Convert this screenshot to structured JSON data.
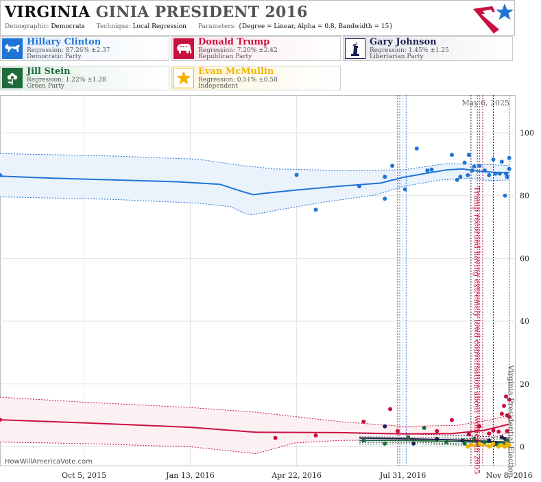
{
  "header": {
    "title_state": "VIRGINIA",
    "title_rest": "GINIA PRESIDENT 2016",
    "params": [
      {
        "label": "Demographic:",
        "value": "Democrats"
      },
      {
        "label": "Technique:",
        "value": "Local Regression"
      },
      {
        "label": "Parameters:",
        "value": "{Degree = Linear, Alpha = 0.8, Bandwidth = 15}"
      }
    ]
  },
  "candidates": [
    {
      "name": "Hillary Clinton",
      "regression": "Regression: 87.26% ±2.37",
      "party": "Democratic Party",
      "color": "#1f74d6",
      "icon": "donkey-icon"
    },
    {
      "name": "Donald Trump",
      "regression": "Regression: 7.20% ±2.42",
      "party": "Republican Party",
      "color": "#c8103e",
      "icon": "elephant-icon"
    },
    {
      "name": "Gary Johnson",
      "regression": "Regression: 1.45% ±1.25",
      "party": "Libertarian Party",
      "color": "#1c1f4f",
      "icon": "statue-of-liberty-icon"
    },
    {
      "name": "Jill Stein",
      "regression": "Regression: 1.22% ±1.28",
      "party": "Green Party",
      "color": "#1e6b3a",
      "icon": "flower-icon"
    },
    {
      "name": "Evan McMullin",
      "regression": "Regression: 0.51% ±0.58",
      "party": "Independent",
      "color": "#f0b400",
      "icon": "star-icon"
    }
  ],
  "chart_data": {
    "type": "scatter",
    "date_stamp": "May 6, 2025",
    "credit": "HowWillAmericaVote.com",
    "x_domain": [
      "2015-07-18",
      "2016-11-14"
    ],
    "ylim": [
      -6,
      112
    ],
    "y_ticks": [
      0,
      20,
      40,
      60,
      80,
      100
    ],
    "x_ticks": [
      {
        "date": "2015-10-05",
        "label": "Oct 5, 2015"
      },
      {
        "date": "2016-01-13",
        "label": "Jan 13, 2016"
      },
      {
        "date": "2016-04-22",
        "label": "Apr 22, 2016"
      },
      {
        "date": "2016-07-31",
        "label": "Jul 31, 2016"
      },
      {
        "date": "2016-11-08",
        "label": "Nov 8, 2016"
      }
    ],
    "event_lines": [
      {
        "date": "2016-07-26",
        "color": "#c8103e"
      },
      {
        "date": "2016-07-28",
        "color": "#1f74d6"
      },
      {
        "date": "2016-08-03",
        "color": "#1f74d6"
      },
      {
        "date": "2016-10-03",
        "color": "#1c1f4f"
      },
      {
        "date": "2016-10-09",
        "color": "#c8103e"
      },
      {
        "date": "2016-10-11",
        "color": "#c8103e"
      },
      {
        "date": "2016-10-14",
        "color": "#c8103e"
      },
      {
        "date": "2016-10-24",
        "color": "#1c1f4f"
      },
      {
        "date": "2016-11-08",
        "color": "#666666"
      }
    ],
    "annotations": [
      {
        "text": "Trump recorded having extremely lewd conversation about women in 2005",
        "date": "2016-10-07",
        "y": 83,
        "color": "#c8103e"
      },
      {
        "text": "Virginia Presidential Election",
        "date": "2016-11-08",
        "y": 26,
        "color": "#555555"
      }
    ],
    "series": [
      {
        "name": "Hillary Clinton",
        "color": "#1f74d6",
        "band_fill": "#eaf2fb",
        "trend": [
          [
            "2015-07-18",
            86.2
          ],
          [
            "2015-09-01",
            85.6
          ],
          [
            "2015-11-01",
            85.0
          ],
          [
            "2016-01-01",
            84.4
          ],
          [
            "2016-02-10",
            83.6
          ],
          [
            "2016-03-01",
            81.4
          ],
          [
            "2016-03-12",
            80.3
          ],
          [
            "2016-03-25",
            80.8
          ],
          [
            "2016-04-22",
            81.8
          ],
          [
            "2016-06-01",
            83.0
          ],
          [
            "2016-07-10",
            84.0
          ],
          [
            "2016-07-31",
            85.8
          ],
          [
            "2016-08-20",
            87.0
          ],
          [
            "2016-09-10",
            88.2
          ],
          [
            "2016-09-25",
            88.5
          ],
          [
            "2016-10-10",
            87.8
          ],
          [
            "2016-10-25",
            87.4
          ],
          [
            "2016-11-08",
            87.3
          ]
        ],
        "upper": [
          [
            "2015-07-18",
            93.4
          ],
          [
            "2015-11-01",
            92.6
          ],
          [
            "2016-01-20",
            91.6
          ],
          [
            "2016-03-01",
            89.6
          ],
          [
            "2016-04-01",
            88.5
          ],
          [
            "2016-06-01",
            88.0
          ],
          [
            "2016-07-31",
            88.2
          ],
          [
            "2016-09-10",
            90.2
          ],
          [
            "2016-10-10",
            90.0
          ],
          [
            "2016-11-08",
            89.6
          ]
        ],
        "lower": [
          [
            "2015-07-18",
            79.6
          ],
          [
            "2015-11-01",
            78.8
          ],
          [
            "2016-01-20",
            77.6
          ],
          [
            "2016-02-20",
            76.5
          ],
          [
            "2016-03-05",
            74.2
          ],
          [
            "2016-03-12",
            73.9
          ],
          [
            "2016-04-01",
            75.2
          ],
          [
            "2016-05-15",
            77.8
          ],
          [
            "2016-07-05",
            80.2
          ],
          [
            "2016-08-01",
            83.0
          ],
          [
            "2016-09-05",
            85.0
          ],
          [
            "2016-10-01",
            85.5
          ],
          [
            "2016-10-20",
            84.8
          ],
          [
            "2016-11-08",
            85.0
          ]
        ],
        "points": [
          [
            "2015-07-18",
            86.5
          ],
          [
            "2016-04-22",
            86.6
          ],
          [
            "2016-05-10",
            75.5
          ],
          [
            "2016-06-20",
            83.0
          ],
          [
            "2016-07-14",
            86.0
          ],
          [
            "2016-07-14",
            79.0
          ],
          [
            "2016-07-21",
            89.5
          ],
          [
            "2016-08-02",
            82.0
          ],
          [
            "2016-08-13",
            95.0
          ],
          [
            "2016-08-23",
            88.0
          ],
          [
            "2016-08-27",
            88.3
          ],
          [
            "2016-09-15",
            93.0
          ],
          [
            "2016-09-20",
            85.0
          ],
          [
            "2016-09-23",
            86.0
          ],
          [
            "2016-09-27",
            90.5
          ],
          [
            "2016-09-30",
            86.5
          ],
          [
            "2016-10-01",
            93.0
          ],
          [
            "2016-10-04",
            88.0
          ],
          [
            "2016-10-06",
            89.3
          ],
          [
            "2016-10-11",
            89.5
          ],
          [
            "2016-10-16",
            88.0
          ],
          [
            "2016-10-20",
            86.5
          ],
          [
            "2016-10-24",
            91.5
          ],
          [
            "2016-10-26",
            87.0
          ],
          [
            "2016-10-30",
            87.0
          ],
          [
            "2016-11-01",
            90.8
          ],
          [
            "2016-11-04",
            80.0
          ],
          [
            "2016-11-05",
            87.0
          ],
          [
            "2016-11-06",
            86.0
          ],
          [
            "2016-11-08",
            92.0
          ],
          [
            "2016-11-08",
            88.5
          ]
        ]
      },
      {
        "name": "Donald Trump",
        "color": "#c8103e",
        "band_fill": "#fdf0f3",
        "trend": [
          [
            "2015-07-18",
            8.6
          ],
          [
            "2015-10-05",
            7.6
          ],
          [
            "2016-01-13",
            6.2
          ],
          [
            "2016-03-15",
            4.6
          ],
          [
            "2016-06-01",
            4.5
          ],
          [
            "2016-07-31",
            4.1
          ],
          [
            "2016-09-15",
            4.2
          ],
          [
            "2016-10-15",
            5.2
          ],
          [
            "2016-11-08",
            7.2
          ]
        ],
        "upper": [
          [
            "2015-07-18",
            15.8
          ],
          [
            "2015-10-05",
            14.2
          ],
          [
            "2016-01-13",
            12.5
          ],
          [
            "2016-03-15",
            11.0
          ],
          [
            "2016-06-01",
            8.0
          ],
          [
            "2016-07-31",
            6.5
          ],
          [
            "2016-09-20",
            6.8
          ],
          [
            "2016-10-20",
            8.5
          ],
          [
            "2016-11-08",
            10.0
          ]
        ],
        "lower": [
          [
            "2015-07-18",
            1.5
          ],
          [
            "2015-10-05",
            1.0
          ],
          [
            "2016-01-13",
            0.0
          ],
          [
            "2016-03-15",
            -2.2
          ],
          [
            "2016-04-20",
            1.2
          ],
          [
            "2016-06-01",
            2.0
          ],
          [
            "2016-07-31",
            2.2
          ],
          [
            "2016-09-20",
            2.2
          ],
          [
            "2016-10-20",
            2.5
          ],
          [
            "2016-11-08",
            4.5
          ]
        ],
        "points": [
          [
            "2015-07-18",
            8.6
          ],
          [
            "2016-04-02",
            2.8
          ],
          [
            "2016-05-10",
            3.6
          ],
          [
            "2016-06-24",
            8.0
          ],
          [
            "2016-07-19",
            12.0
          ],
          [
            "2016-07-26",
            5.0
          ],
          [
            "2016-09-01",
            5.0
          ],
          [
            "2016-09-15",
            8.5
          ],
          [
            "2016-10-01",
            4.0
          ],
          [
            "2016-10-11",
            6.5
          ],
          [
            "2016-10-20",
            4.2
          ],
          [
            "2016-10-24",
            5.2
          ],
          [
            "2016-10-29",
            4.8
          ],
          [
            "2016-11-01",
            10.5
          ],
          [
            "2016-11-03",
            13.0
          ],
          [
            "2016-11-05",
            16.0
          ],
          [
            "2016-11-06",
            10.0
          ],
          [
            "2016-11-06",
            5.0
          ],
          [
            "2016-11-08",
            15.0
          ],
          [
            "2016-11-08",
            9.5
          ]
        ]
      },
      {
        "name": "Gary Johnson",
        "color": "#1c1f4f",
        "band_fill": "none",
        "trend": [
          [
            "2016-06-20",
            2.8
          ],
          [
            "2016-07-31",
            2.6
          ],
          [
            "2016-09-15",
            2.2
          ],
          [
            "2016-10-20",
            1.7
          ],
          [
            "2016-11-08",
            1.45
          ]
        ],
        "upper": [
          [
            "2016-06-20",
            4.2
          ],
          [
            "2016-08-15",
            4.0
          ],
          [
            "2016-10-20",
            3.2
          ],
          [
            "2016-11-08",
            2.8
          ]
        ],
        "lower": [
          [
            "2016-06-20",
            1.4
          ],
          [
            "2016-08-15",
            1.4
          ],
          [
            "2016-10-20",
            0.6
          ],
          [
            "2016-11-08",
            0.3
          ]
        ],
        "points": [
          [
            "2016-07-14",
            6.5
          ],
          [
            "2016-08-10",
            1.0
          ],
          [
            "2016-09-01",
            2.5
          ],
          [
            "2016-09-25",
            2.0
          ],
          [
            "2016-10-10",
            1.0
          ],
          [
            "2016-10-20",
            2.0
          ],
          [
            "2016-10-26",
            1.0
          ],
          [
            "2016-11-01",
            3.0
          ],
          [
            "2016-11-04",
            2.5
          ],
          [
            "2016-11-06",
            1.5
          ]
        ]
      },
      {
        "name": "Jill Stein",
        "color": "#1e6b3a",
        "band_fill": "none",
        "trend": [
          [
            "2016-06-20",
            2.0
          ],
          [
            "2016-07-31",
            2.0
          ],
          [
            "2016-09-15",
            1.7
          ],
          [
            "2016-10-20",
            1.4
          ],
          [
            "2016-11-08",
            1.22
          ]
        ],
        "upper": [
          [
            "2016-06-20",
            3.2
          ],
          [
            "2016-08-15",
            3.0
          ],
          [
            "2016-10-20",
            2.4
          ],
          [
            "2016-11-08",
            2.5
          ]
        ],
        "lower": [
          [
            "2016-06-20",
            0.8
          ],
          [
            "2016-08-15",
            0.9
          ],
          [
            "2016-10-20",
            0.3
          ],
          [
            "2016-11-08",
            -0.1
          ]
        ],
        "points": [
          [
            "2016-06-24",
            2.0
          ],
          [
            "2016-07-14",
            1.0
          ],
          [
            "2016-08-05",
            3.0
          ],
          [
            "2016-08-20",
            6.0
          ],
          [
            "2016-09-10",
            1.5
          ],
          [
            "2016-09-27",
            1.0
          ],
          [
            "2016-10-06",
            2.5
          ],
          [
            "2016-10-16",
            1.5
          ],
          [
            "2016-10-28",
            0.5
          ],
          [
            "2016-11-04",
            1.0
          ],
          [
            "2016-11-06",
            2.0
          ]
        ]
      },
      {
        "name": "Evan McMullin",
        "color": "#f0b400",
        "band_fill": "none",
        "trend": [
          [
            "2016-10-01",
            0.6
          ],
          [
            "2016-10-20",
            0.55
          ],
          [
            "2016-11-08",
            0.51
          ]
        ],
        "upper": [
          [
            "2016-10-01",
            1.2
          ],
          [
            "2016-11-08",
            1.1
          ]
        ],
        "lower": [
          [
            "2016-10-01",
            0.0
          ],
          [
            "2016-11-08",
            -0.1
          ]
        ],
        "points": [
          [
            "2016-09-30",
            0.0
          ],
          [
            "2016-10-04",
            0.5
          ],
          [
            "2016-10-11",
            1.0
          ],
          [
            "2016-10-20",
            0.0
          ],
          [
            "2016-10-24",
            1.0
          ],
          [
            "2016-10-29",
            0.0
          ],
          [
            "2016-11-01",
            0.5
          ],
          [
            "2016-11-04",
            0.0
          ],
          [
            "2016-11-06",
            1.0
          ],
          [
            "2016-11-08",
            0.5
          ]
        ]
      }
    ]
  }
}
